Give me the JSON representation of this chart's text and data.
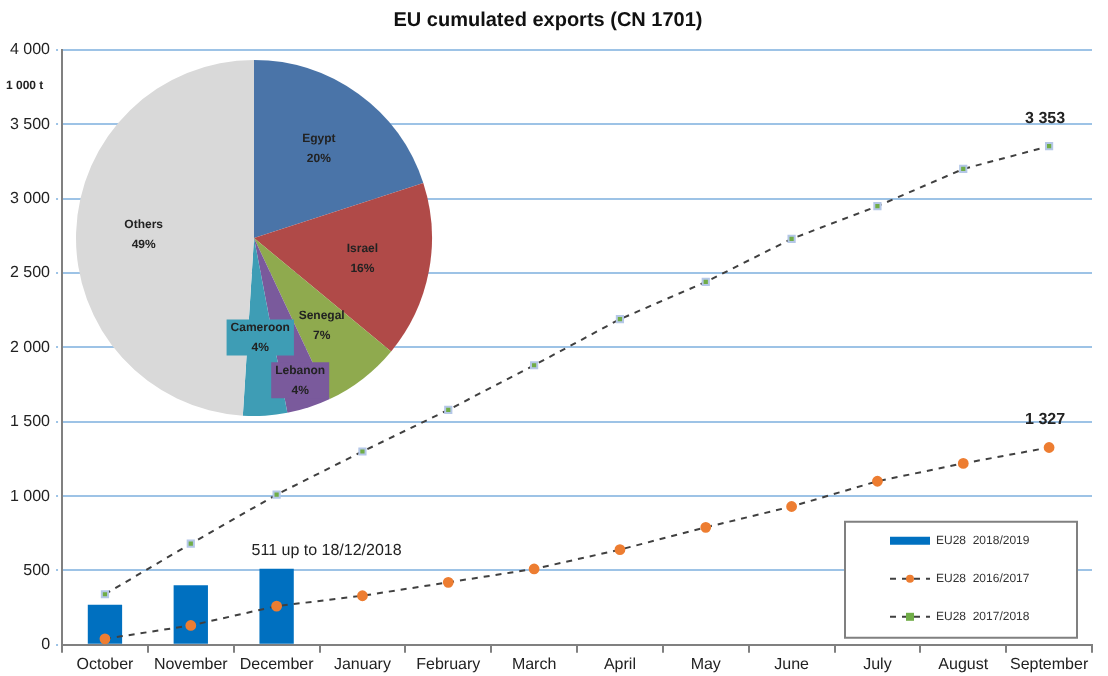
{
  "chart_data": [
    {
      "type": "bar",
      "title": "EU cumulated exports (CN 1701)",
      "ylabel": "1 000 t",
      "categories": [
        "October",
        "November",
        "December",
        "January",
        "February",
        "March",
        "April",
        "May",
        "June",
        "July",
        "August",
        "September"
      ],
      "series": [
        {
          "name": "EU28  2018/2019",
          "type": "bar",
          "color": "#0070c0",
          "values": [
            270,
            400,
            511,
            null,
            null,
            null,
            null,
            null,
            null,
            null,
            null,
            null
          ]
        },
        {
          "name": "EU28  2016/2017",
          "type": "line",
          "color": "#ed7d31",
          "marker": "circle",
          "line_style": "dashed",
          "values": [
            40,
            130,
            260,
            330,
            420,
            510,
            640,
            790,
            930,
            1100,
            1220,
            1327
          ],
          "value_labels": [
            null,
            null,
            null,
            null,
            null,
            null,
            null,
            null,
            null,
            null,
            null,
            "1 327"
          ]
        },
        {
          "name": "EU28  2017/2018",
          "type": "line",
          "color": "#70ad47",
          "marker": "square",
          "line_style": "dashed",
          "values": [
            340,
            680,
            1010,
            1300,
            1580,
            1880,
            2190,
            2440,
            2730,
            2950,
            3200,
            3353
          ],
          "value_labels": [
            null,
            null,
            null,
            null,
            null,
            null,
            null,
            null,
            null,
            null,
            null,
            "3 353"
          ]
        }
      ],
      "ylim": [
        0,
        4000
      ],
      "yticks": [
        0,
        500,
        {
          "value": 1000,
          "label": "1 000"
        },
        {
          "value": 1500,
          "label": "1 500"
        },
        {
          "value": 2000,
          "label": "2 000"
        },
        {
          "value": 2500,
          "label": "2 500"
        },
        {
          "value": 3000,
          "label": "3 000"
        },
        {
          "value": 3500,
          "label": "3 500"
        },
        {
          "value": 4000,
          "label": "4 000"
        }
      ],
      "grid": "y",
      "legend": "bottom right",
      "annotations": [
        {
          "text": "511 up to 18/12/2018",
          "x": "December",
          "y": 511
        }
      ]
    },
    {
      "type": "pie",
      "categories": [
        "Egypt",
        "Israel",
        "Senegal",
        "Lebanon",
        "Cameroon",
        "Others"
      ],
      "values": [
        20,
        16,
        7,
        4,
        4,
        49
      ],
      "colors": [
        "#4a74a8",
        "#b04a48",
        "#8faa4e",
        "#7a5a9c",
        "#3e9db5",
        "#d9d9d9"
      ],
      "value_labels": [
        "20%",
        "16%",
        "7%",
        "4%",
        "4%",
        "49%"
      ]
    }
  ]
}
